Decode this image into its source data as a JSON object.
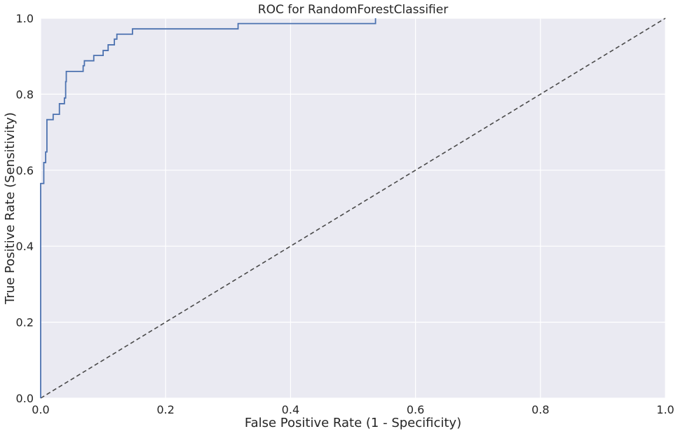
{
  "chart_data": {
    "type": "line",
    "title": "ROC for RandomForestClassifier",
    "xlabel": "False Positive Rate (1 - Specificity)",
    "ylabel": "True Positive Rate (Sensitivity)",
    "xlim": [
      0,
      1
    ],
    "ylim": [
      0,
      1
    ],
    "xticks": [
      "0.0",
      "0.2",
      "0.4",
      "0.6",
      "0.8",
      "1.0"
    ],
    "yticks": [
      "0.0",
      "0.2",
      "0.4",
      "0.6",
      "0.8",
      "1.0"
    ],
    "grid": true,
    "legend": "none",
    "series": [
      {
        "role": "roc-curve",
        "color": "#4c72b0",
        "linestyle": "solid",
        "points": [
          [
            0.0,
            0.0
          ],
          [
            0.0,
            0.565
          ],
          [
            0.005,
            0.565
          ],
          [
            0.005,
            0.62
          ],
          [
            0.008,
            0.62
          ],
          [
            0.008,
            0.648
          ],
          [
            0.01,
            0.648
          ],
          [
            0.01,
            0.733
          ],
          [
            0.02,
            0.733
          ],
          [
            0.02,
            0.747
          ],
          [
            0.03,
            0.747
          ],
          [
            0.03,
            0.775
          ],
          [
            0.038,
            0.775
          ],
          [
            0.038,
            0.79
          ],
          [
            0.04,
            0.79
          ],
          [
            0.04,
            0.833
          ],
          [
            0.041,
            0.833
          ],
          [
            0.041,
            0.86
          ],
          [
            0.068,
            0.86
          ],
          [
            0.068,
            0.875
          ],
          [
            0.07,
            0.875
          ],
          [
            0.07,
            0.888
          ],
          [
            0.085,
            0.888
          ],
          [
            0.085,
            0.902
          ],
          [
            0.1,
            0.902
          ],
          [
            0.1,
            0.915
          ],
          [
            0.108,
            0.915
          ],
          [
            0.108,
            0.93
          ],
          [
            0.118,
            0.93
          ],
          [
            0.118,
            0.945
          ],
          [
            0.122,
            0.945
          ],
          [
            0.122,
            0.958
          ],
          [
            0.147,
            0.958
          ],
          [
            0.147,
            0.972
          ],
          [
            0.316,
            0.972
          ],
          [
            0.316,
            0.986
          ],
          [
            0.536,
            0.986
          ],
          [
            0.536,
            1.0
          ]
        ]
      },
      {
        "role": "reference-diagonal",
        "color": "#4a4a4a",
        "linestyle": "dashed",
        "points": [
          [
            0,
            0
          ],
          [
            1,
            1
          ]
        ]
      }
    ]
  }
}
